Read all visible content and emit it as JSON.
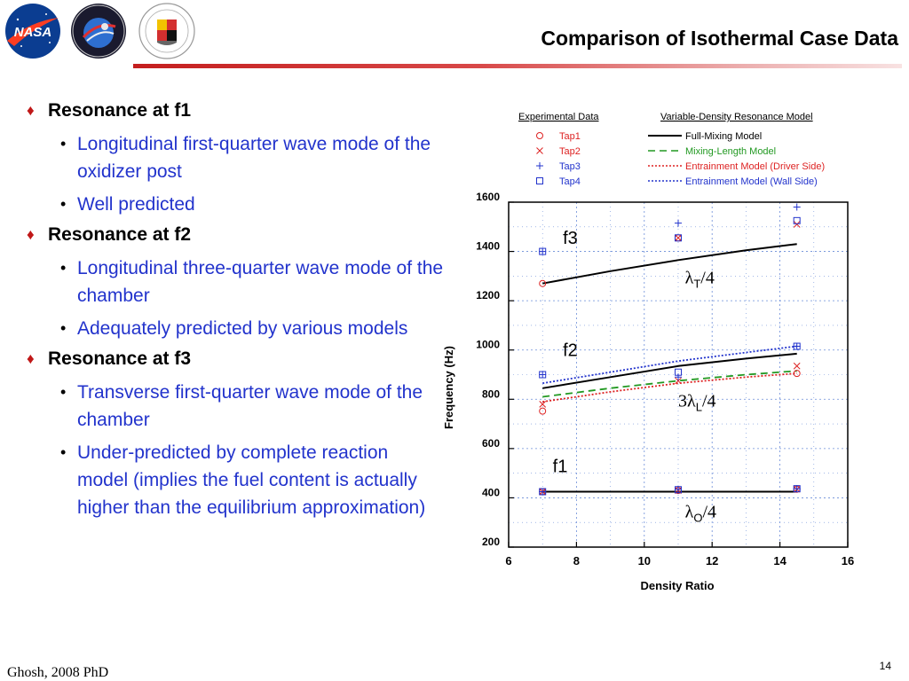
{
  "slide": {
    "title": "Comparison of Isothermal Case Data",
    "footer_author": "Ghosh, 2008 PhD",
    "page_number": "14"
  },
  "logos": [
    {
      "name": "NASA",
      "icon": "nasa-meatball-logo"
    },
    {
      "name": "Exploration",
      "icon": "exploration-emblem-logo"
    },
    {
      "name": "University of Maryland",
      "icon": "umd-seal-logo"
    }
  ],
  "bullets": [
    {
      "heading": "Resonance at f1",
      "items": [
        "Longitudinal first-quarter wave mode of the oxidizer post",
        "Well predicted"
      ]
    },
    {
      "heading": "Resonance at f2",
      "items": [
        "Longitudinal three-quarter wave mode of the chamber",
        "Adequately predicted by various models"
      ]
    },
    {
      "heading": "Resonance at f3",
      "items": [
        "Transverse first-quarter wave mode of the chamber",
        "Under-predicted by complete reaction model (implies the fuel content is actually higher than the equilibrium approximation)"
      ]
    }
  ],
  "chart_data": {
    "type": "scatter",
    "xlabel": "Density Ratio",
    "ylabel": "Frequency (Hz)",
    "xlim": [
      6,
      16
    ],
    "ylim": [
      200,
      1600
    ],
    "xticks": [
      6,
      8,
      10,
      12,
      14,
      16
    ],
    "yticks": [
      200,
      400,
      600,
      800,
      1000,
      1200,
      1400,
      1600
    ],
    "grid": true,
    "legend_placement": "top",
    "legend_headers": {
      "experimental": "Experimental Data",
      "model": "Variable-Density Resonance Model"
    },
    "experimental_series": [
      {
        "name": "Tap1",
        "marker": "circle",
        "color": "#dd2222",
        "points": [
          [
            7,
            425
          ],
          [
            7,
            752
          ],
          [
            7,
            1270
          ],
          [
            11,
            430
          ],
          [
            11,
            1455
          ],
          [
            14.5,
            435
          ],
          [
            14.5,
            905
          ]
        ]
      },
      {
        "name": "Tap2",
        "marker": "cross",
        "color": "#dd2222",
        "points": [
          [
            7,
            425
          ],
          [
            7,
            780
          ],
          [
            11,
            430
          ],
          [
            11,
            1455
          ],
          [
            11,
            875
          ],
          [
            14.5,
            435
          ],
          [
            14.5,
            935
          ],
          [
            14.5,
            1510
          ]
        ]
      },
      {
        "name": "Tap3",
        "marker": "plus",
        "color": "#2233cc",
        "points": [
          [
            7,
            425
          ],
          [
            7,
            900
          ],
          [
            7,
            1400
          ],
          [
            11,
            435
          ],
          [
            11,
            1515
          ],
          [
            11,
            890
          ],
          [
            14.5,
            437
          ],
          [
            14.5,
            1015
          ],
          [
            14.5,
            1580
          ]
        ]
      },
      {
        "name": "Tap4",
        "marker": "square",
        "color": "#2233cc",
        "points": [
          [
            7,
            425
          ],
          [
            7,
            900
          ],
          [
            7,
            1400
          ],
          [
            11,
            433
          ],
          [
            11,
            1455
          ],
          [
            11,
            910
          ],
          [
            14.5,
            437
          ],
          [
            14.5,
            1015
          ],
          [
            14.5,
            1525
          ]
        ]
      }
    ],
    "model_series": [
      {
        "name": "Full-Mixing Model",
        "style": "solid",
        "color": "#000000",
        "curves": [
          [
            [
              7,
              425
            ],
            [
              14.5,
              425
            ]
          ],
          [
            [
              7,
              845
            ],
            [
              9,
              890
            ],
            [
              11,
              935
            ],
            [
              13,
              965
            ],
            [
              14.5,
              985
            ]
          ],
          [
            [
              7,
              1270
            ],
            [
              9,
              1320
            ],
            [
              11,
              1365
            ],
            [
              13,
              1405
            ],
            [
              14.5,
              1430
            ]
          ]
        ]
      },
      {
        "name": "Mixing-Length Model",
        "style": "dashed",
        "color": "#229922",
        "curves": [
          [
            [
              7,
              810
            ],
            [
              9,
              845
            ],
            [
              11,
              875
            ],
            [
              13,
              900
            ],
            [
              14.5,
              915
            ]
          ]
        ]
      },
      {
        "name": "Entrainment Model (Driver Side)",
        "style": "dotted",
        "color": "#dd2222",
        "curves": [
          [
            [
              7,
              790
            ],
            [
              9,
              830
            ],
            [
              11,
              865
            ],
            [
              13,
              890
            ],
            [
              14.5,
              905
            ]
          ]
        ]
      },
      {
        "name": "Entrainment Model (Wall Side)",
        "style": "dotted",
        "color": "#2233cc",
        "curves": [
          [
            [
              7,
              865
            ],
            [
              9,
              910
            ],
            [
              11,
              955
            ],
            [
              13,
              990
            ],
            [
              14.5,
              1015
            ]
          ]
        ]
      }
    ],
    "mode_labels": [
      {
        "text": "f3",
        "x": 7.6,
        "y": 1430
      },
      {
        "text": "f2",
        "x": 7.6,
        "y": 975
      },
      {
        "text": "f1",
        "x": 7.3,
        "y": 505
      }
    ],
    "wavelength_annotations": [
      {
        "prefix": "",
        "greek": "λ",
        "sub": "T",
        "suffix": "/4",
        "x": 11.2,
        "y": 1270
      },
      {
        "prefix": "3",
        "greek": "λ",
        "sub": "L",
        "suffix": "/4",
        "x": 11.0,
        "y": 770
      },
      {
        "prefix": "",
        "greek": "λ",
        "sub": "O",
        "suffix": "/4",
        "x": 11.2,
        "y": 320
      }
    ]
  }
}
